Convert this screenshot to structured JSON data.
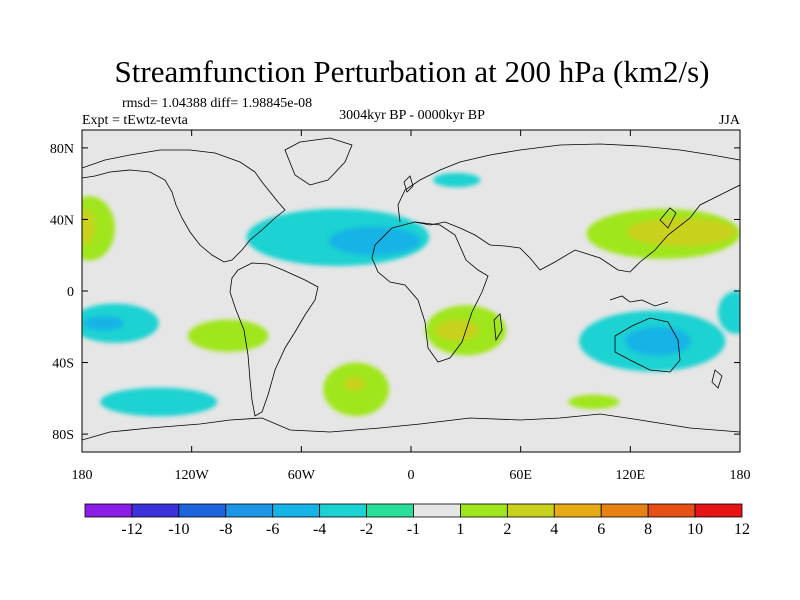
{
  "chart_data": {
    "type": "contour-map",
    "title": "Streamfunction Perturbation at 200 hPa (km2/s)",
    "stats": "rmsd= 1.04388 diff= 1.98845e-08",
    "experiment": "Expt = tEwtz-tevta",
    "period": "3004kyr BP - 0000kyr BP",
    "season": "JJA",
    "x_ticks": [
      {
        "lon": -180,
        "label": "180"
      },
      {
        "lon": -120,
        "label": "120W"
      },
      {
        "lon": -60,
        "label": "60W"
      },
      {
        "lon": 0,
        "label": "0"
      },
      {
        "lon": 60,
        "label": "60E"
      },
      {
        "lon": 120,
        "label": "120E"
      },
      {
        "lon": 180,
        "label": "180"
      }
    ],
    "y_ticks": [
      {
        "lat": 80,
        "label": "80N"
      },
      {
        "lat": 40,
        "label": "40N"
      },
      {
        "lat": 0,
        "label": "0"
      },
      {
        "lat": -40,
        "label": "40S"
      },
      {
        "lat": -80,
        "label": "80S"
      }
    ],
    "xlim": [
      -180,
      180
    ],
    "ylim": [
      -90,
      90
    ],
    "colorbar": {
      "labels": [
        "-12",
        "-10",
        "-8",
        "-6",
        "-4",
        "-2",
        "-1",
        "1",
        "2",
        "4",
        "6",
        "8",
        "10",
        "12"
      ],
      "colors": [
        "#8a1ee6",
        "#3c32dc",
        "#1e64dc",
        "#1e96e6",
        "#16b4e6",
        "#1cd2d2",
        "#28e09a",
        "#e6e6e6",
        "#a0e61e",
        "#c8d21e",
        "#e6aa14",
        "#e68214",
        "#e65014",
        "#e61414"
      ]
    },
    "anomalies": [
      {
        "name": "north-pacific-west-positive",
        "lon": -176,
        "lat": 35,
        "rx": 14,
        "ry": 18,
        "level": "2"
      },
      {
        "name": "north-pacific-west-positive-core",
        "lon": -178,
        "lat": 36,
        "rx": 5,
        "ry": 10,
        "level": "4"
      },
      {
        "name": "north-atlantic-negative",
        "lon": -40,
        "lat": 30,
        "rx": 50,
        "ry": 16,
        "level": "-2"
      },
      {
        "name": "north-atlantic-negative-core",
        "lon": -20,
        "lat": 28,
        "rx": 25,
        "ry": 8,
        "level": "-4"
      },
      {
        "name": "arctic-europe-negative",
        "lon": 25,
        "lat": 62,
        "rx": 13,
        "ry": 4,
        "level": "-2"
      },
      {
        "name": "west-pacific-positive",
        "lon": 138,
        "lat": 32,
        "rx": 42,
        "ry": 14,
        "level": "2"
      },
      {
        "name": "west-pacific-positive-core",
        "lon": 148,
        "lat": 33,
        "rx": 30,
        "ry": 8,
        "level": "4"
      },
      {
        "name": "south-pacific-negative",
        "lon": -162,
        "lat": -18,
        "rx": 24,
        "ry": 11,
        "level": "-2"
      },
      {
        "name": "south-pacific-negative-core",
        "lon": -168,
        "lat": -18,
        "rx": 11,
        "ry": 4,
        "level": "-4"
      },
      {
        "name": "south-pacific-positive",
        "lon": -100,
        "lat": -25,
        "rx": 22,
        "ry": 9,
        "level": "2"
      },
      {
        "name": "south-atlantic-positive",
        "lon": -30,
        "lat": -55,
        "rx": 18,
        "ry": 15,
        "level": "2"
      },
      {
        "name": "south-atlantic-positive-core",
        "lon": -31,
        "lat": -52,
        "rx": 6,
        "ry": 4,
        "level": "4"
      },
      {
        "name": "southern-pacific-negative",
        "lon": -138,
        "lat": -62,
        "rx": 32,
        "ry": 8,
        "level": "-2"
      },
      {
        "name": "southern-africa-positive",
        "lon": 30,
        "lat": -22,
        "rx": 22,
        "ry": 14,
        "level": "2"
      },
      {
        "name": "southern-africa-positive-core",
        "lon": 25,
        "lat": -22,
        "rx": 12,
        "ry": 6,
        "level": "4"
      },
      {
        "name": "australia-negative",
        "lon": 132,
        "lat": -28,
        "rx": 40,
        "ry": 17,
        "level": "-2"
      },
      {
        "name": "australia-negative-core",
        "lon": 135,
        "lat": -28,
        "rx": 18,
        "ry": 8,
        "level": "-4"
      },
      {
        "name": "southern-ocean-positive",
        "lon": 100,
        "lat": -62,
        "rx": 14,
        "ry": 4,
        "level": "2"
      },
      {
        "name": "date-line-south-negative",
        "lon": 178,
        "lat": -12,
        "rx": 10,
        "ry": 12,
        "level": "-2"
      }
    ]
  }
}
